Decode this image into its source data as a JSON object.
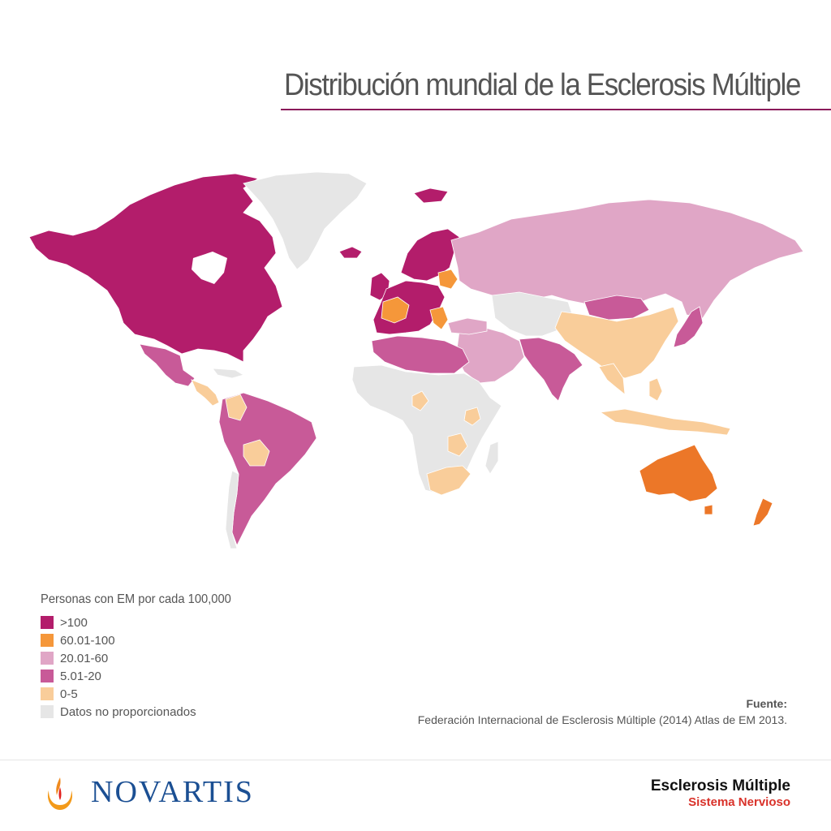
{
  "title": "Distribución mundial de la Esclerosis Múltiple",
  "colors": {
    "gt100": "#b31d6b",
    "c60_100": "#f5973a",
    "c60_100_dark": "#ec7728",
    "c20_60": "#e0a6c6",
    "c5_20": "#c85a98",
    "c0_5": "#f9cd9a",
    "nodata": "#e6e6e6",
    "title_rule": "#8a1a5a"
  },
  "legend": {
    "title": "Personas con EM por cada 100,000",
    "items": [
      {
        "label": ">100",
        "color": "#b31d6b"
      },
      {
        "label": "60.01-100",
        "color": "#f5973a"
      },
      {
        "label": "20.01-60",
        "color": "#e0a6c6"
      },
      {
        "label": "5.01-20",
        "color": "#c85a98"
      },
      {
        "label": "0-5",
        "color": "#f9cd9a"
      },
      {
        "label": "Datos no proporcionados",
        "color": "#e6e6e6"
      }
    ]
  },
  "source": {
    "label": "Fuente:",
    "text": "Federación Internacional de Esclerosis Múltiple (2014) Atlas de EM 2013."
  },
  "footer": {
    "logo_text": "NOVARTIS",
    "brand_title": "Esclerosis Múltiple",
    "brand_subtitle": "Sistema Nervioso"
  },
  "map_regions": [
    {
      "name": "north-america",
      "category": ">100"
    },
    {
      "name": "greenland",
      "category": "Datos no proporcionados"
    },
    {
      "name": "iceland",
      "category": ">100"
    },
    {
      "name": "scandinavia",
      "category": ">100"
    },
    {
      "name": "western-europe",
      "category": ">100"
    },
    {
      "name": "france",
      "category": "60.01-100"
    },
    {
      "name": "russia",
      "category": "20.01-60"
    },
    {
      "name": "mexico",
      "category": "5.01-20"
    },
    {
      "name": "central-america",
      "category": "0-5"
    },
    {
      "name": "south-america",
      "category": "5.01-20"
    },
    {
      "name": "bolivia",
      "category": "0-5"
    },
    {
      "name": "north-africa",
      "category": "5.01-20"
    },
    {
      "name": "africa",
      "category": "Datos no proporcionados"
    },
    {
      "name": "southern-africa",
      "category": "0-5"
    },
    {
      "name": "middle-east",
      "category": "20.01-60"
    },
    {
      "name": "central-asia",
      "category": "Datos no proporcionados"
    },
    {
      "name": "india",
      "category": "5.01-20"
    },
    {
      "name": "mongolia",
      "category": "5.01-20"
    },
    {
      "name": "china",
      "category": "0-5"
    },
    {
      "name": "japan",
      "category": "5.01-20"
    },
    {
      "name": "southeast-asia",
      "category": "0-5"
    },
    {
      "name": "australia",
      "category": "60.01-100"
    },
    {
      "name": "new-zealand",
      "category": "60.01-100"
    }
  ]
}
